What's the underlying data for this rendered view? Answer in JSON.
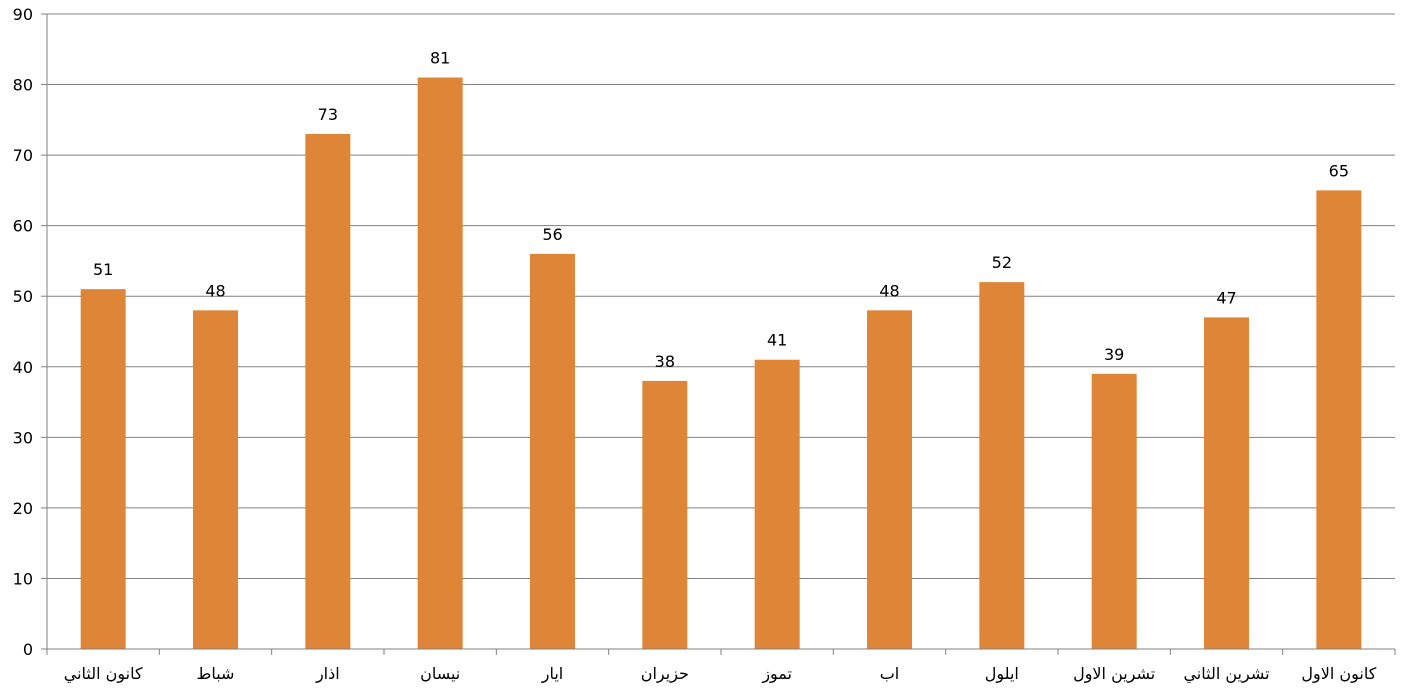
{
  "chart_data": {
    "type": "bar",
    "categories": [
      "كانون الثاني",
      "شباط",
      "اذار",
      "نيسان",
      "ايار",
      "حزيران",
      "تموز",
      "اب",
      "ايلول",
      "تشرين الاول",
      "تشرين الثاني",
      "كانون الاول"
    ],
    "values": [
      51,
      48,
      73,
      81,
      56,
      38,
      41,
      48,
      52,
      39,
      47,
      65
    ],
    "ylim": [
      0,
      90
    ],
    "yticks": [
      0,
      10,
      20,
      30,
      40,
      50,
      60,
      70,
      80,
      90
    ],
    "grid": true,
    "data_labels": true,
    "bar_color": "#DE8537",
    "grid_color": "#808080"
  }
}
